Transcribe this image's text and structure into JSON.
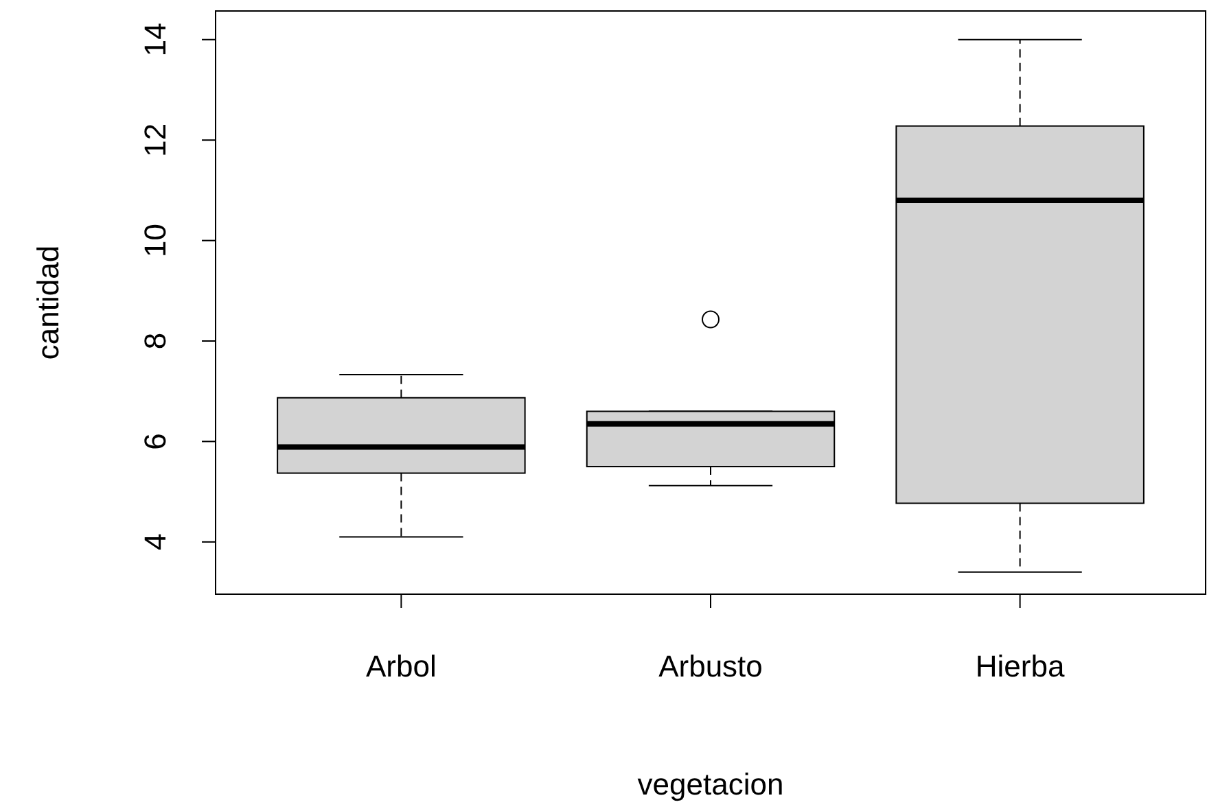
{
  "chart_data": {
    "type": "box",
    "xlabel": "vegetacion",
    "ylabel": "cantidad",
    "categories": [
      "Arbol",
      "Arbusto",
      "Hierba"
    ],
    "color": "#d3d3d3",
    "ylim": [
      2.96,
      14.57
    ],
    "yticks": [
      4,
      6,
      8,
      10,
      12,
      14
    ],
    "grid": false,
    "boxes": [
      {
        "low": 4.1,
        "q1": 5.37,
        "median": 5.89,
        "q3": 6.87,
        "high": 7.33
      },
      {
        "low": 5.12,
        "q1": 5.5,
        "median": 6.35,
        "q3": 6.6,
        "high": 6.6,
        "outliers": [
          8.43
        ]
      },
      {
        "low": 3.4,
        "q1": 4.77,
        "median": 10.8,
        "q3": 12.28,
        "high": 14
      }
    ]
  }
}
